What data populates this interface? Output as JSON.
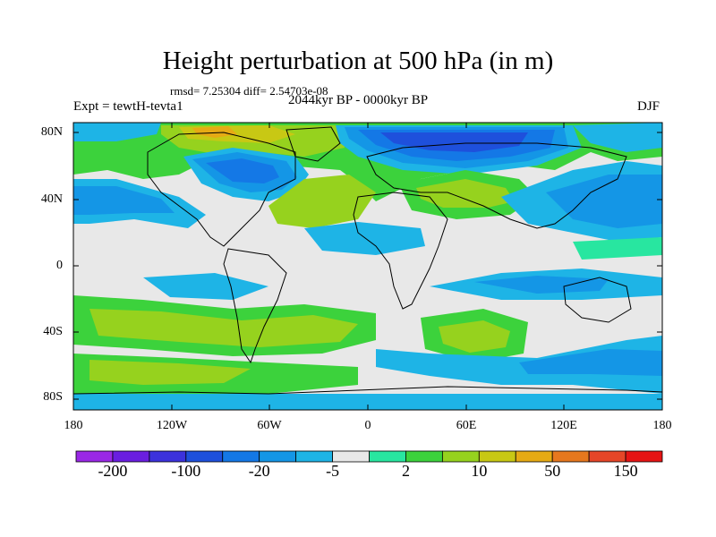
{
  "title": "Height perturbation at 500 hPa (in m)",
  "stats": "rmsd= 7.25304 diff= 2.54703e-08",
  "experiment": "Expt = tewtH-tevta1",
  "period": "2044kyr BP - 0000kyr BP",
  "season": "DJF",
  "lat_ticks": [
    "80N",
    "40N",
    "0",
    "40S",
    "80S"
  ],
  "lon_ticks": [
    "180",
    "120W",
    "60W",
    "0",
    "60E",
    "120E",
    "180"
  ],
  "colorbar": {
    "labels": [
      "-200",
      "-100",
      "-20",
      "-5",
      "2",
      "10",
      "50",
      "150"
    ],
    "colors": [
      "#9a28e6",
      "#6a1ee0",
      "#3c32dc",
      "#1e50dc",
      "#1478e6",
      "#1496e6",
      "#1eb4e6",
      "#e8e8e8",
      "#28e6a0",
      "#3cd23c",
      "#96d21e",
      "#c8c814",
      "#e6aa14",
      "#e6781e",
      "#e64628",
      "#e61414"
    ]
  },
  "colors": {
    "neutral": "#e8e8e8",
    "light_blue": "#1eb4e6",
    "mid_blue": "#1496e6",
    "blue": "#1478e6",
    "dark_blue": "#1e50dc",
    "deep_blue": "#3c32dc",
    "teal": "#28e6a0",
    "green": "#3cd23c",
    "yellow_green": "#96d21e",
    "olive": "#c8c814",
    "orange": "#e6aa14"
  }
}
